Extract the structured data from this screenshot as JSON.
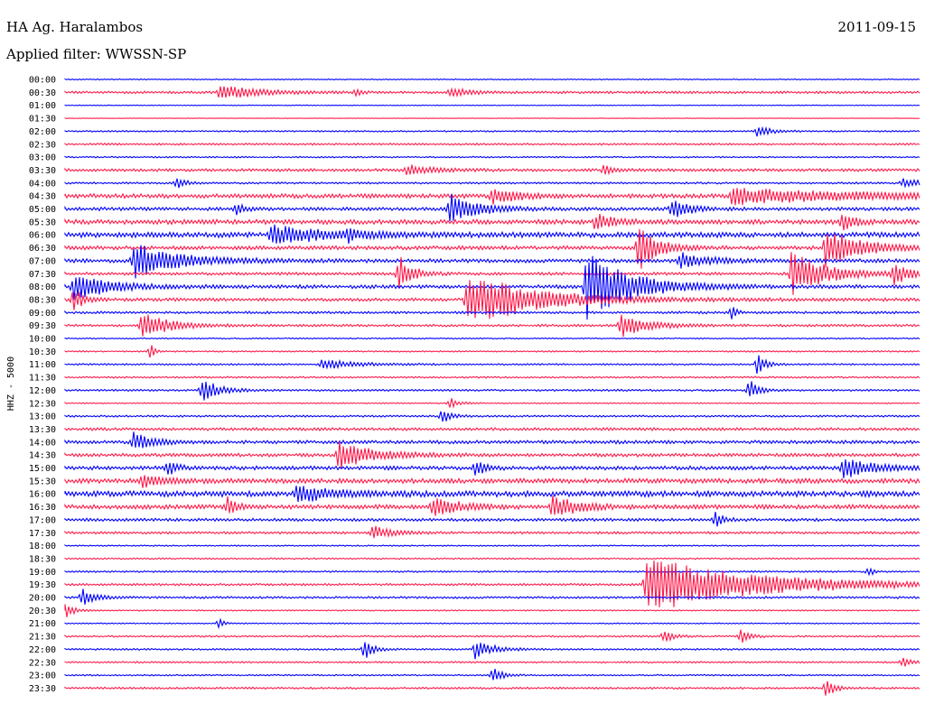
{
  "header": {
    "station": "HA Ag. Haralambos",
    "date": "2011-09-15",
    "filter_label": "Applied filter: WWSSN-SP"
  },
  "chart_data": {
    "type": "line",
    "title": "HA Ag. Haralambos",
    "subtitle": "Applied filter: WWSSN-SP",
    "ylabel": "HHZ - 5000",
    "xlabel": "",
    "grid": false,
    "colors": [
      "#0000ff",
      "#ff1a4a"
    ],
    "row_labels": [
      "00:00",
      "00:30",
      "01:00",
      "01:30",
      "02:00",
      "02:30",
      "03:00",
      "03:30",
      "04:00",
      "04:30",
      "05:00",
      "05:30",
      "06:00",
      "06:30",
      "07:00",
      "07:30",
      "08:00",
      "08:30",
      "09:00",
      "09:30",
      "10:00",
      "10:30",
      "11:00",
      "11:30",
      "12:00",
      "12:30",
      "13:00",
      "13:30",
      "14:00",
      "14:30",
      "15:00",
      "15:30",
      "16:00",
      "16:30",
      "17:00",
      "17:30",
      "18:00",
      "18:30",
      "19:00",
      "19:30",
      "20:00",
      "20:30",
      "21:00",
      "21:30",
      "22:00",
      "22:30",
      "23:00",
      "23:30"
    ],
    "noise_level": [
      0.4,
      1.0,
      0.3,
      0.2,
      0.6,
      0.8,
      0.6,
      1.2,
      0.8,
      1.8,
      1.4,
      2.0,
      2.2,
      1.6,
      1.6,
      1.2,
      1.5,
      1.3,
      1.0,
      1.0,
      0.5,
      0.6,
      0.7,
      0.7,
      0.8,
      0.5,
      0.8,
      1.2,
      1.4,
      1.4,
      1.6,
      2.0,
      2.4,
      1.8,
      1.2,
      1.0,
      0.5,
      0.6,
      0.7,
      0.9,
      0.9,
      0.5,
      0.5,
      0.7,
      0.7,
      0.7,
      0.6,
      0.8
    ],
    "events": [
      {
        "row": 1,
        "t": 0.18,
        "amp": 8,
        "dur": 0.04
      },
      {
        "row": 1,
        "t": 0.34,
        "amp": 6,
        "dur": 0.005
      },
      {
        "row": 1,
        "t": 0.45,
        "amp": 5,
        "dur": 0.02
      },
      {
        "row": 4,
        "t": 0.81,
        "amp": 6,
        "dur": 0.015
      },
      {
        "row": 7,
        "t": 0.4,
        "amp": 5,
        "dur": 0.03
      },
      {
        "row": 7,
        "t": 0.63,
        "amp": 6,
        "dur": 0.01
      },
      {
        "row": 8,
        "t": 0.13,
        "amp": 6,
        "dur": 0.01
      },
      {
        "row": 8,
        "t": 0.98,
        "amp": 5,
        "dur": 0.02
      },
      {
        "row": 9,
        "t": 0.5,
        "amp": 8,
        "dur": 0.03
      },
      {
        "row": 9,
        "t": 0.78,
        "amp": 8,
        "dur": 0.15
      },
      {
        "row": 10,
        "t": 0.45,
        "amp": 16,
        "dur": 0.03
      },
      {
        "row": 10,
        "t": 0.2,
        "amp": 7,
        "dur": 0.01
      },
      {
        "row": 10,
        "t": 0.71,
        "amp": 10,
        "dur": 0.02
      },
      {
        "row": 11,
        "t": 0.62,
        "amp": 8,
        "dur": 0.02
      },
      {
        "row": 11,
        "t": 0.91,
        "amp": 12,
        "dur": 0.01
      },
      {
        "row": 12,
        "t": 0.24,
        "amp": 10,
        "dur": 0.06
      },
      {
        "row": 12,
        "t": 0.33,
        "amp": 7,
        "dur": 0.01
      },
      {
        "row": 13,
        "t": 0.67,
        "amp": 26,
        "dur": 0.02
      },
      {
        "row": 13,
        "t": 0.89,
        "amp": 20,
        "dur": 0.04
      },
      {
        "row": 14,
        "t": 0.08,
        "amp": 18,
        "dur": 0.05
      },
      {
        "row": 14,
        "t": 0.72,
        "amp": 8,
        "dur": 0.03
      },
      {
        "row": 15,
        "t": 0.39,
        "amp": 20,
        "dur": 0.015
      },
      {
        "row": 15,
        "t": 0.85,
        "amp": 22,
        "dur": 0.04
      },
      {
        "row": 15,
        "t": 0.97,
        "amp": 12,
        "dur": 0.015
      },
      {
        "row": 16,
        "t": 0.61,
        "amp": 35,
        "dur": 0.05
      },
      {
        "row": 16,
        "t": 0.01,
        "amp": 14,
        "dur": 0.04
      },
      {
        "row": 17,
        "t": 0.47,
        "amp": 28,
        "dur": 0.08
      },
      {
        "row": 17,
        "t": 0.01,
        "amp": 14,
        "dur": 0.01
      },
      {
        "row": 18,
        "t": 0.78,
        "amp": 8,
        "dur": 0.005
      },
      {
        "row": 19,
        "t": 0.09,
        "amp": 14,
        "dur": 0.03
      },
      {
        "row": 19,
        "t": 0.65,
        "amp": 12,
        "dur": 0.03
      },
      {
        "row": 21,
        "t": 0.1,
        "amp": 8,
        "dur": 0.005
      },
      {
        "row": 22,
        "t": 0.81,
        "amp": 10,
        "dur": 0.01
      },
      {
        "row": 22,
        "t": 0.3,
        "amp": 5,
        "dur": 0.04
      },
      {
        "row": 24,
        "t": 0.16,
        "amp": 12,
        "dur": 0.02
      },
      {
        "row": 24,
        "t": 0.8,
        "amp": 12,
        "dur": 0.01
      },
      {
        "row": 25,
        "t": 0.45,
        "amp": 6,
        "dur": 0.01
      },
      {
        "row": 26,
        "t": 0.44,
        "amp": 8,
        "dur": 0.01
      },
      {
        "row": 28,
        "t": 0.08,
        "amp": 10,
        "dur": 0.02
      },
      {
        "row": 29,
        "t": 0.32,
        "amp": 14,
        "dur": 0.04
      },
      {
        "row": 30,
        "t": 0.12,
        "amp": 8,
        "dur": 0.01
      },
      {
        "row": 30,
        "t": 0.48,
        "amp": 10,
        "dur": 0.01
      },
      {
        "row": 30,
        "t": 0.91,
        "amp": 12,
        "dur": 0.03
      },
      {
        "row": 31,
        "t": 0.09,
        "amp": 8,
        "dur": 0.02
      },
      {
        "row": 32,
        "t": 0.27,
        "amp": 8,
        "dur": 0.04
      },
      {
        "row": 33,
        "t": 0.19,
        "amp": 10,
        "dur": 0.01
      },
      {
        "row": 33,
        "t": 0.43,
        "amp": 10,
        "dur": 0.03
      },
      {
        "row": 33,
        "t": 0.57,
        "amp": 12,
        "dur": 0.03
      },
      {
        "row": 34,
        "t": 0.76,
        "amp": 8,
        "dur": 0.01
      },
      {
        "row": 35,
        "t": 0.36,
        "amp": 8,
        "dur": 0.02
      },
      {
        "row": 38,
        "t": 0.94,
        "amp": 6,
        "dur": 0.005
      },
      {
        "row": 39,
        "t": 0.68,
        "amp": 30,
        "dur": 0.12
      },
      {
        "row": 40,
        "t": 0.02,
        "amp": 9,
        "dur": 0.015
      },
      {
        "row": 41,
        "t": 0.0,
        "amp": 8,
        "dur": 0.01
      },
      {
        "row": 42,
        "t": 0.18,
        "amp": 6,
        "dur": 0.005
      },
      {
        "row": 43,
        "t": 0.7,
        "amp": 7,
        "dur": 0.01
      },
      {
        "row": 43,
        "t": 0.79,
        "amp": 8,
        "dur": 0.01
      },
      {
        "row": 44,
        "t": 0.35,
        "amp": 12,
        "dur": 0.01
      },
      {
        "row": 44,
        "t": 0.48,
        "amp": 10,
        "dur": 0.02
      },
      {
        "row": 45,
        "t": 0.98,
        "amp": 6,
        "dur": 0.01
      },
      {
        "row": 46,
        "t": 0.5,
        "amp": 10,
        "dur": 0.01
      },
      {
        "row": 47,
        "t": 0.89,
        "amp": 12,
        "dur": 0.01
      }
    ]
  }
}
